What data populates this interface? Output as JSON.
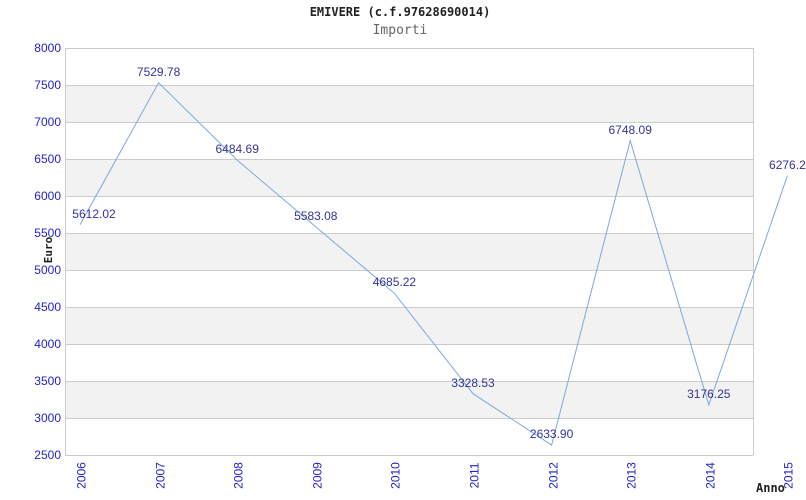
{
  "header": {
    "title": "EMIVERE (c.f.97628690014)",
    "subtitle": "Importi"
  },
  "chart_data": {
    "type": "line",
    "title": "EMIVERE (c.f.97628690014)",
    "subtitle": "Importi",
    "xlabel": "Anno",
    "ylabel": "Euro",
    "categories": [
      "2006",
      "2007",
      "2008",
      "2009",
      "2010",
      "2011",
      "2012",
      "2013",
      "2014",
      "2015"
    ],
    "values": [
      5612.02,
      7529.78,
      6484.69,
      5583.08,
      4685.22,
      3328.53,
      2633.9,
      6748.09,
      3176.25,
      6276.2
    ],
    "point_labels": [
      "5612.02",
      "7529.78",
      "6484.69",
      "5583.08",
      "4685.22",
      "3328.53",
      "2633.90",
      "6748.09",
      "3176.25",
      "6276.2"
    ],
    "ylim": [
      2500,
      8000
    ],
    "yticks": [
      8000,
      7500,
      7000,
      6500,
      6000,
      5500,
      5000,
      4500,
      4000,
      3500,
      3000,
      2500
    ],
    "grid": "horizontal-lines-with-alternating-bands",
    "legend": "none"
  },
  "colors": {
    "line": "#7aa9dc",
    "tick_label": "#2222cc",
    "point_label": "#333399",
    "band": "#f2f2f2",
    "grid": "#cccccc",
    "title": "#222222",
    "subtitle": "#666666",
    "axis_title": "#222222",
    "background": "#ffffff"
  }
}
